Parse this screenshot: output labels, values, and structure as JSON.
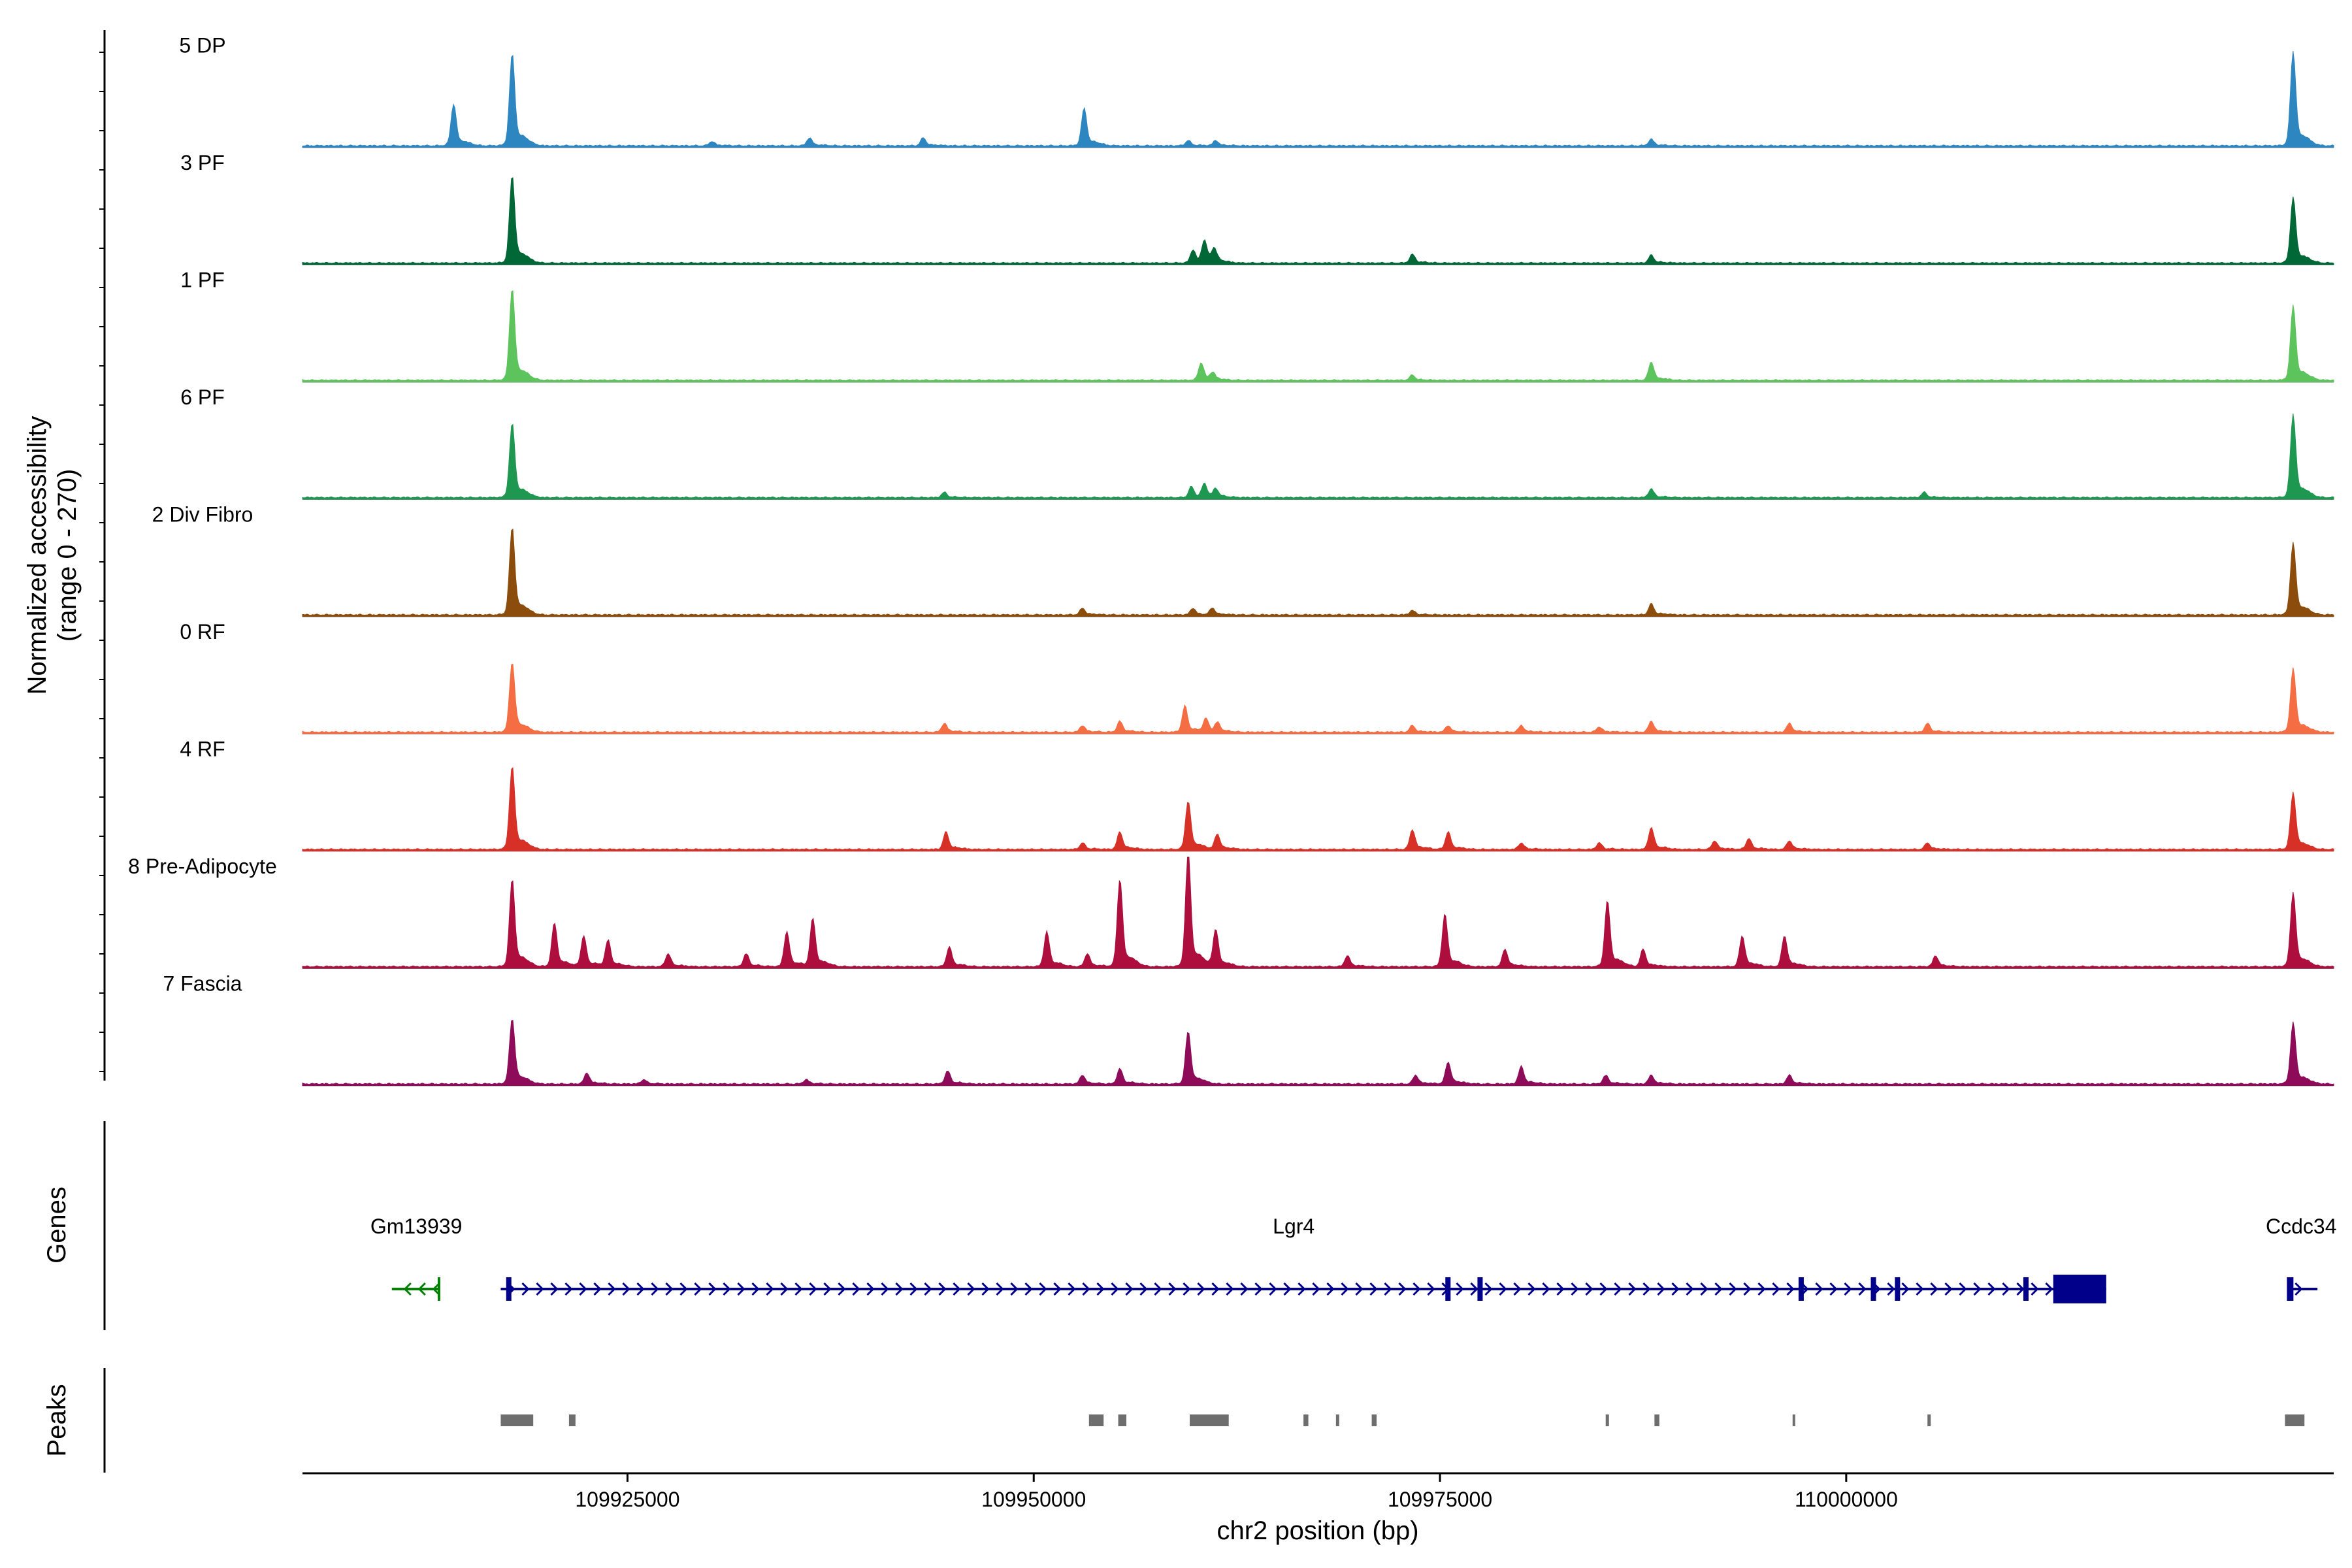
{
  "chart_data": {
    "type": "area",
    "title": "",
    "y_axis_title": "Normalized accessibility",
    "y_axis_subtitle": "(range 0 - 270)",
    "y_range": [
      0,
      270
    ],
    "x_axis_title": "chr2 position (bp)",
    "x_range": [
      109905000,
      110030000
    ],
    "x_ticks": [
      109925000,
      109950000,
      109975000,
      110000000
    ],
    "x_tick_labels": [
      "109925000",
      "109950000",
      "109975000",
      "110000000"
    ],
    "tracks_panel_title": "Genes",
    "peaks_panel_title": "Peaks",
    "tracks": [
      {
        "name": "5 DP",
        "color": "#2E86C1",
        "peaks": [
          [
            109914300,
            95
          ],
          [
            109917900,
            210
          ],
          [
            109930200,
            10
          ],
          [
            109936200,
            18
          ],
          [
            109943200,
            18
          ],
          [
            109953100,
            85
          ],
          [
            109959500,
            12
          ],
          [
            109961200,
            12
          ],
          [
            109988000,
            15
          ],
          [
            110027500,
            215
          ]
        ]
      },
      {
        "name": "3 PF",
        "color": "#006837",
        "peaks": [
          [
            109917900,
            200
          ],
          [
            109959800,
            30
          ],
          [
            109960500,
            50
          ],
          [
            109961100,
            30
          ],
          [
            109973300,
            20
          ],
          [
            109988000,
            18
          ],
          [
            110027500,
            150
          ]
        ]
      },
      {
        "name": "1 PF",
        "color": "#5DC35D",
        "peaks": [
          [
            109917900,
            210
          ],
          [
            109960300,
            40
          ],
          [
            109961000,
            15
          ],
          [
            109973300,
            12
          ],
          [
            109988000,
            42
          ],
          [
            110027500,
            170
          ]
        ]
      },
      {
        "name": "6 PF",
        "color": "#1E9850",
        "peaks": [
          [
            109917900,
            170
          ],
          [
            109944500,
            12
          ],
          [
            109959700,
            25
          ],
          [
            109960500,
            30
          ],
          [
            109961200,
            18
          ],
          [
            109988000,
            20
          ],
          [
            110004800,
            12
          ],
          [
            110027500,
            190
          ]
        ]
      },
      {
        "name": "2 Div Fibro",
        "color": "#8B4C0C",
        "peaks": [
          [
            109917900,
            200
          ],
          [
            109953000,
            15
          ],
          [
            109959800,
            15
          ],
          [
            109961000,
            15
          ],
          [
            109973300,
            10
          ],
          [
            109988000,
            25
          ],
          [
            110027500,
            165
          ]
        ]
      },
      {
        "name": "0 RF",
        "color": "#F46D43",
        "peaks": [
          [
            109917900,
            160
          ],
          [
            109944500,
            20
          ],
          [
            109953000,
            15
          ],
          [
            109955300,
            25
          ],
          [
            109959300,
            60
          ],
          [
            109960600,
            30
          ],
          [
            109961300,
            20
          ],
          [
            109973300,
            15
          ],
          [
            109975500,
            15
          ],
          [
            109980000,
            15
          ],
          [
            109984800,
            12
          ],
          [
            109988000,
            25
          ],
          [
            109996500,
            20
          ],
          [
            110005000,
            20
          ],
          [
            110027500,
            145
          ]
        ]
      },
      {
        "name": "4 RF",
        "color": "#D73027",
        "peaks": [
          [
            109917900,
            190
          ],
          [
            109944600,
            40
          ],
          [
            109953000,
            15
          ],
          [
            109955300,
            40
          ],
          [
            109959500,
            110
          ],
          [
            109961300,
            35
          ],
          [
            109973300,
            45
          ],
          [
            109975500,
            40
          ],
          [
            109980000,
            15
          ],
          [
            109984800,
            15
          ],
          [
            109988000,
            50
          ],
          [
            109991900,
            20
          ],
          [
            109994000,
            25
          ],
          [
            109996500,
            20
          ],
          [
            110005000,
            15
          ],
          [
            110027500,
            130
          ]
        ]
      },
      {
        "name": "8 Pre-Adipocyte",
        "color": "#AD0E3E",
        "peaks": [
          [
            109917900,
            200
          ],
          [
            109920500,
            100
          ],
          [
            109922300,
            70
          ],
          [
            109923800,
            60
          ],
          [
            109927500,
            30
          ],
          [
            109932300,
            30
          ],
          [
            109934800,
            80
          ],
          [
            109936400,
            110
          ],
          [
            109944800,
            45
          ],
          [
            109950800,
            80
          ],
          [
            109953300,
            30
          ],
          [
            109955300,
            200
          ],
          [
            109959500,
            260
          ],
          [
            109961200,
            85
          ],
          [
            109969300,
            25
          ],
          [
            109975300,
            120
          ],
          [
            109979000,
            40
          ],
          [
            109985300,
            150
          ],
          [
            109987500,
            40
          ],
          [
            109993600,
            70
          ],
          [
            109996200,
            70
          ],
          [
            110005500,
            25
          ],
          [
            110027500,
            170
          ]
        ]
      },
      {
        "name": "7 Fascia",
        "color": "#8E0B5A",
        "peaks": [
          [
            109917900,
            150
          ],
          [
            109922500,
            25
          ],
          [
            109926000,
            10
          ],
          [
            109936000,
            10
          ],
          [
            109944700,
            30
          ],
          [
            109953000,
            20
          ],
          [
            109955300,
            35
          ],
          [
            109959500,
            120
          ],
          [
            109973500,
            20
          ],
          [
            109975500,
            50
          ],
          [
            109980000,
            40
          ],
          [
            109985200,
            20
          ],
          [
            109988000,
            20
          ],
          [
            109996500,
            20
          ],
          [
            110027500,
            140
          ]
        ]
      }
    ],
    "genes": [
      {
        "name": "Gm13939",
        "start": 109910500,
        "end": 109913400,
        "strand": "-",
        "color": "#008000",
        "label_pos": 109912000
      },
      {
        "name": "Lgr4",
        "start": 109917200,
        "end": 110016000,
        "strand": "+",
        "color": "#00008B",
        "label_pos": 109966000
      },
      {
        "name": "Ccdc34",
        "start": 110027200,
        "end": 110029000,
        "strand": "+",
        "color": "#00008B",
        "label_pos": 110028000
      }
    ],
    "peak_regions": [
      [
        109917200,
        109919200
      ],
      [
        109921400,
        109921800
      ],
      [
        109953400,
        109954300
      ],
      [
        109955200,
        109955700
      ],
      [
        109959600,
        109962000
      ],
      [
        109966600,
        109966900
      ],
      [
        109968600,
        109968800
      ],
      [
        109970800,
        109971100
      ],
      [
        109985200,
        109985400
      ],
      [
        109988200,
        109988500
      ],
      [
        109996700,
        109996800
      ],
      [
        110005000,
        110005200
      ],
      [
        110027000,
        110028200
      ]
    ]
  }
}
